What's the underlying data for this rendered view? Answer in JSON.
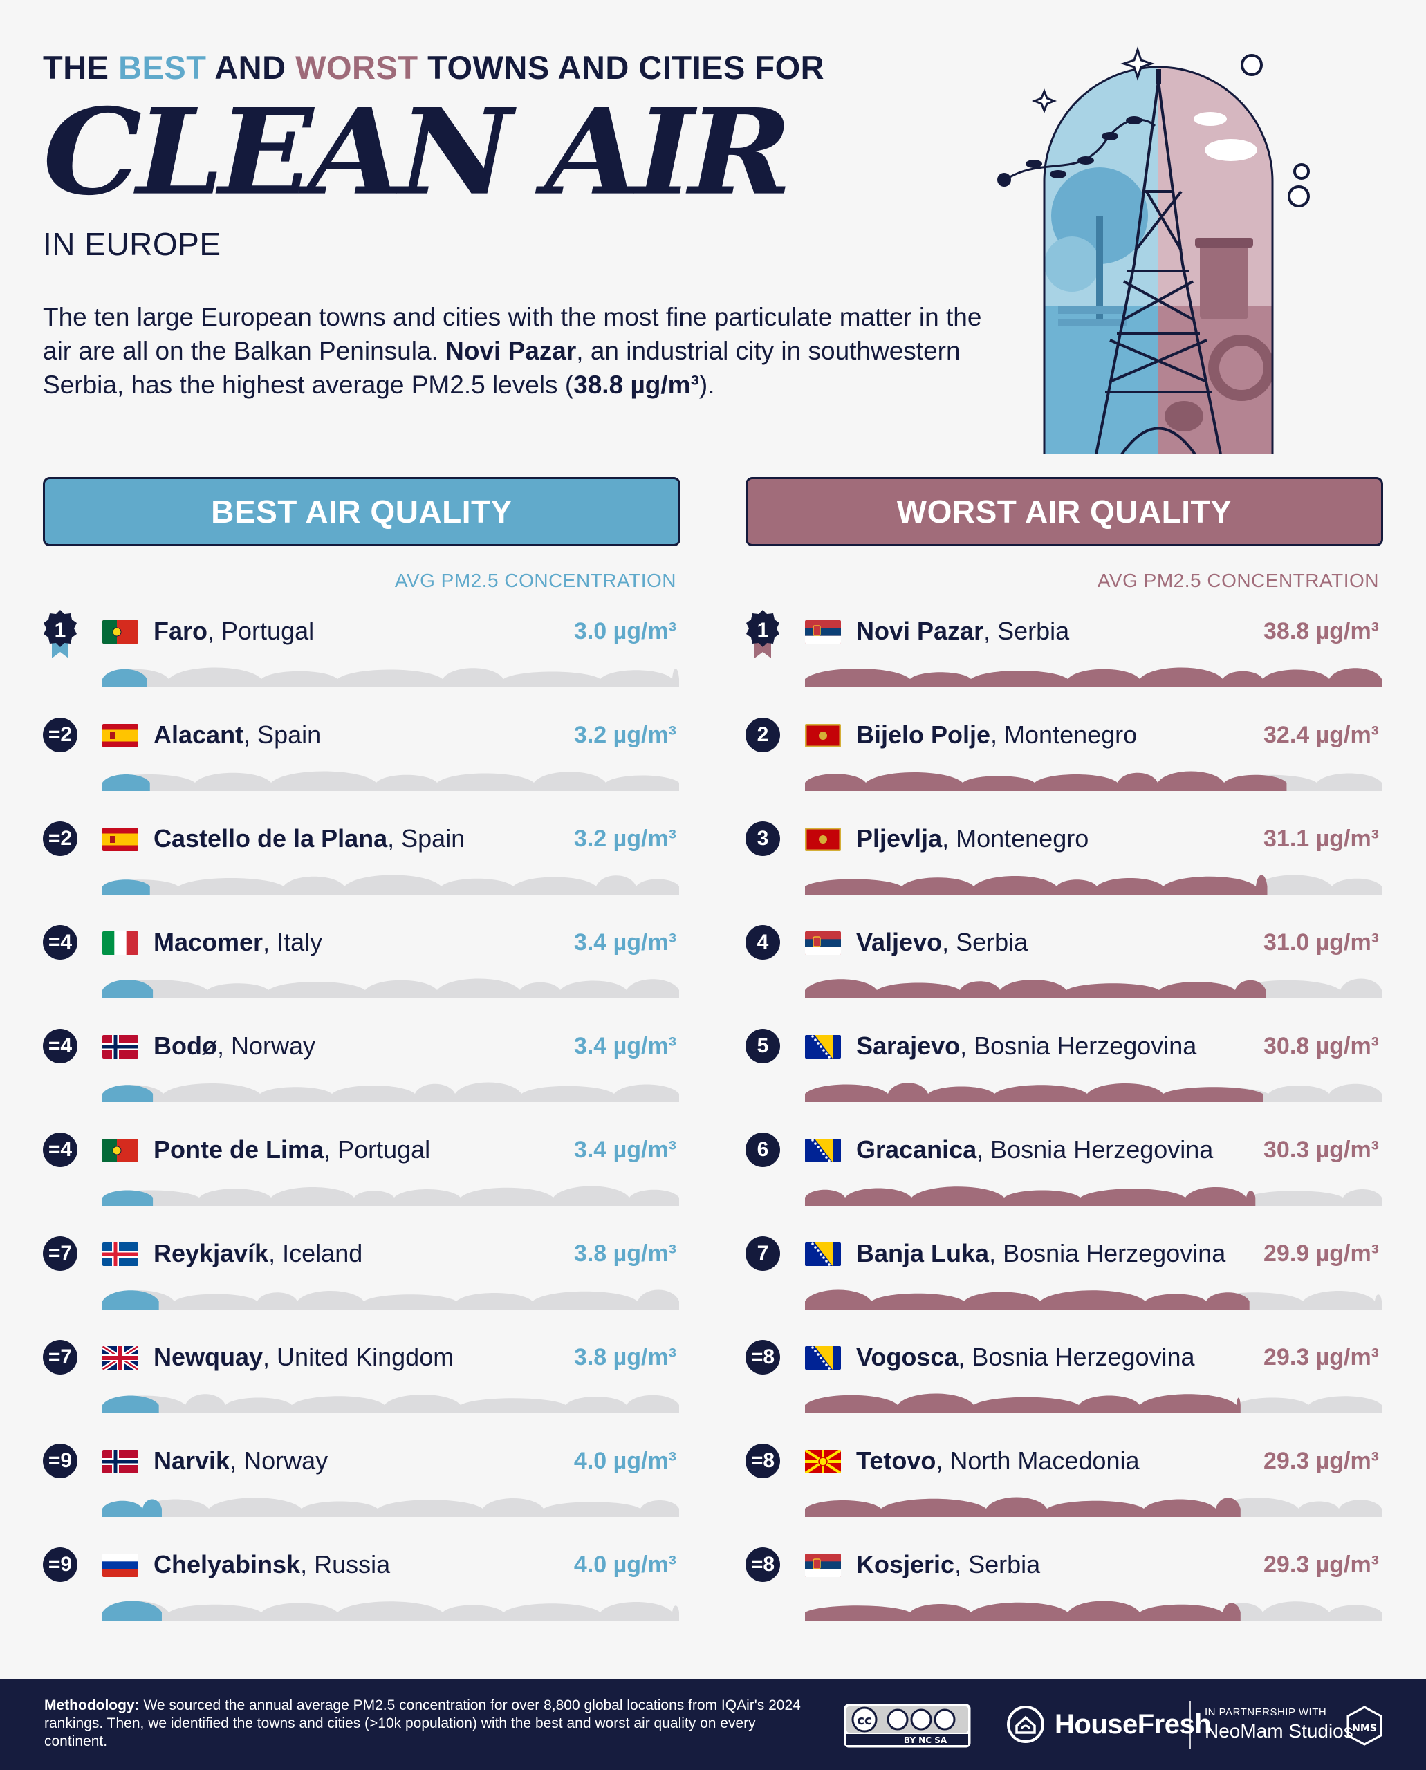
{
  "header": {
    "kicker_pre": "THE ",
    "kicker_best": "BEST",
    "kicker_mid": " AND ",
    "kicker_worst": "WORST",
    "kicker_post": " TOWNS AND CITIES FOR",
    "headline": "CLEAN AIR",
    "subhead": "IN EUROPE",
    "intro_1": "The ten large European towns and cities with the most fine particulate matter in the air are all on the Balkan Peninsula. ",
    "intro_city": "Novi Pazar",
    "intro_2": ", an industrial city in southwestern Serbia, has the highest average PM2.5 levels (",
    "intro_value": "38.8 µg/m³",
    "intro_3": ")."
  },
  "colors": {
    "best": "#61aacb",
    "worst": "#a16c7a",
    "navy": "#141a3c",
    "track": "#dcdcde"
  },
  "chart_data": [
    {
      "type": "bar",
      "title": "BEST AIR QUALITY",
      "ylabel": "AVG PM2.5 CONCENTRATION",
      "unit": "µg/m³",
      "xlim": [
        0,
        38.8
      ],
      "rows": [
        {
          "rank": "1",
          "city": "Faro",
          "country": ", Portugal",
          "flag": "portugal",
          "value": 3.0,
          "label": "3.0 µg/m³"
        },
        {
          "rank": "=2",
          "city": "Alacant",
          "country": ", Spain",
          "flag": "spain",
          "value": 3.2,
          "label": "3.2 µg/m³"
        },
        {
          "rank": "=2",
          "city": "Castello de la Plana",
          "country": ", Spain",
          "flag": "spain",
          "value": 3.2,
          "label": "3.2 µg/m³"
        },
        {
          "rank": "=4",
          "city": "Macomer",
          "country": ", Italy",
          "flag": "italy",
          "value": 3.4,
          "label": "3.4 µg/m³"
        },
        {
          "rank": "=4",
          "city": "Bodø",
          "country": ", Norway",
          "flag": "norway",
          "value": 3.4,
          "label": "3.4 µg/m³"
        },
        {
          "rank": "=4",
          "city": "Ponte de Lima",
          "country": ", Portugal",
          "flag": "portugal",
          "value": 3.4,
          "label": "3.4 µg/m³"
        },
        {
          "rank": "=7",
          "city": "Reykjavík",
          "country": ", Iceland",
          "flag": "iceland",
          "value": 3.8,
          "label": "3.8 µg/m³"
        },
        {
          "rank": "=7",
          "city": "Newquay",
          "country": ", United Kingdom",
          "flag": "uk",
          "value": 3.8,
          "label": "3.8 µg/m³"
        },
        {
          "rank": "=9",
          "city": "Narvik",
          "country": ", Norway",
          "flag": "norway",
          "value": 4.0,
          "label": "4.0 µg/m³"
        },
        {
          "rank": "=9",
          "city": "Chelyabinsk",
          "country": ", Russia",
          "flag": "russia",
          "value": 4.0,
          "label": "4.0 µg/m³"
        }
      ]
    },
    {
      "type": "bar",
      "title": "WORST AIR QUALITY",
      "ylabel": "AVG PM2.5 CONCENTRATION",
      "unit": "µg/m³",
      "xlim": [
        0,
        38.8
      ],
      "rows": [
        {
          "rank": "1",
          "city": "Novi Pazar",
          "country": ", Serbia",
          "flag": "serbia",
          "value": 38.8,
          "label": "38.8 µg/m³"
        },
        {
          "rank": "2",
          "city": "Bijelo Polje",
          "country": ", Montenegro",
          "flag": "montenegro",
          "value": 32.4,
          "label": "32.4 µg/m³"
        },
        {
          "rank": "3",
          "city": "Pljevlja",
          "country": ", Montenegro",
          "flag": "montenegro",
          "value": 31.1,
          "label": "31.1 µg/m³"
        },
        {
          "rank": "4",
          "city": "Valjevo",
          "country": ", Serbia",
          "flag": "serbia",
          "value": 31.0,
          "label": "31.0 µg/m³"
        },
        {
          "rank": "5",
          "city": "Sarajevo",
          "country": ", Bosnia Herzegovina",
          "flag": "bosnia",
          "value": 30.8,
          "label": "30.8 µg/m³"
        },
        {
          "rank": "6",
          "city": "Gracanica",
          "country": ", Bosnia Herzegovina",
          "flag": "bosnia",
          "value": 30.3,
          "label": "30.3 µg/m³"
        },
        {
          "rank": "7",
          "city": "Banja Luka",
          "country": ", Bosnia Herzegovina",
          "flag": "bosnia",
          "value": 29.9,
          "label": "29.9 µg/m³"
        },
        {
          "rank": "=8",
          "city": "Vogosca",
          "country": ", Bosnia Herzegovina",
          "flag": "bosnia",
          "value": 29.3,
          "label": "29.3 µg/m³"
        },
        {
          "rank": "=8",
          "city": "Tetovo",
          "country": ", North Macedonia",
          "flag": "north-macedonia",
          "value": 29.3,
          "label": "29.3 µg/m³"
        },
        {
          "rank": "=8",
          "city": "Kosjeric",
          "country": ", Serbia",
          "flag": "serbia",
          "value": 29.3,
          "label": "29.3 µg/m³"
        }
      ]
    }
  ],
  "footer": {
    "method_label": "Methodology:",
    "method_text": " We sourced the annual average PM2.5 concentration for over 8,800 global locations from IQAir's 2024 rankings. Then, we identified the towns and cities (>10k population) with the best and worst air quality on every continent.",
    "cc_text": "BY NC SA",
    "brand": "HouseFresh",
    "partner_small": "IN PARTNERSHIP WITH",
    "partner_name": "NeoMam Studios",
    "partner_logo_text": "NMS"
  },
  "icons": {
    "illustration": "eiffel-tower-illustration-icon",
    "cc": "creative-commons-icon",
    "brand_logo": "housefresh-logo-icon",
    "partner_logo": "neomam-logo-icon",
    "medal": "medal-icon"
  }
}
